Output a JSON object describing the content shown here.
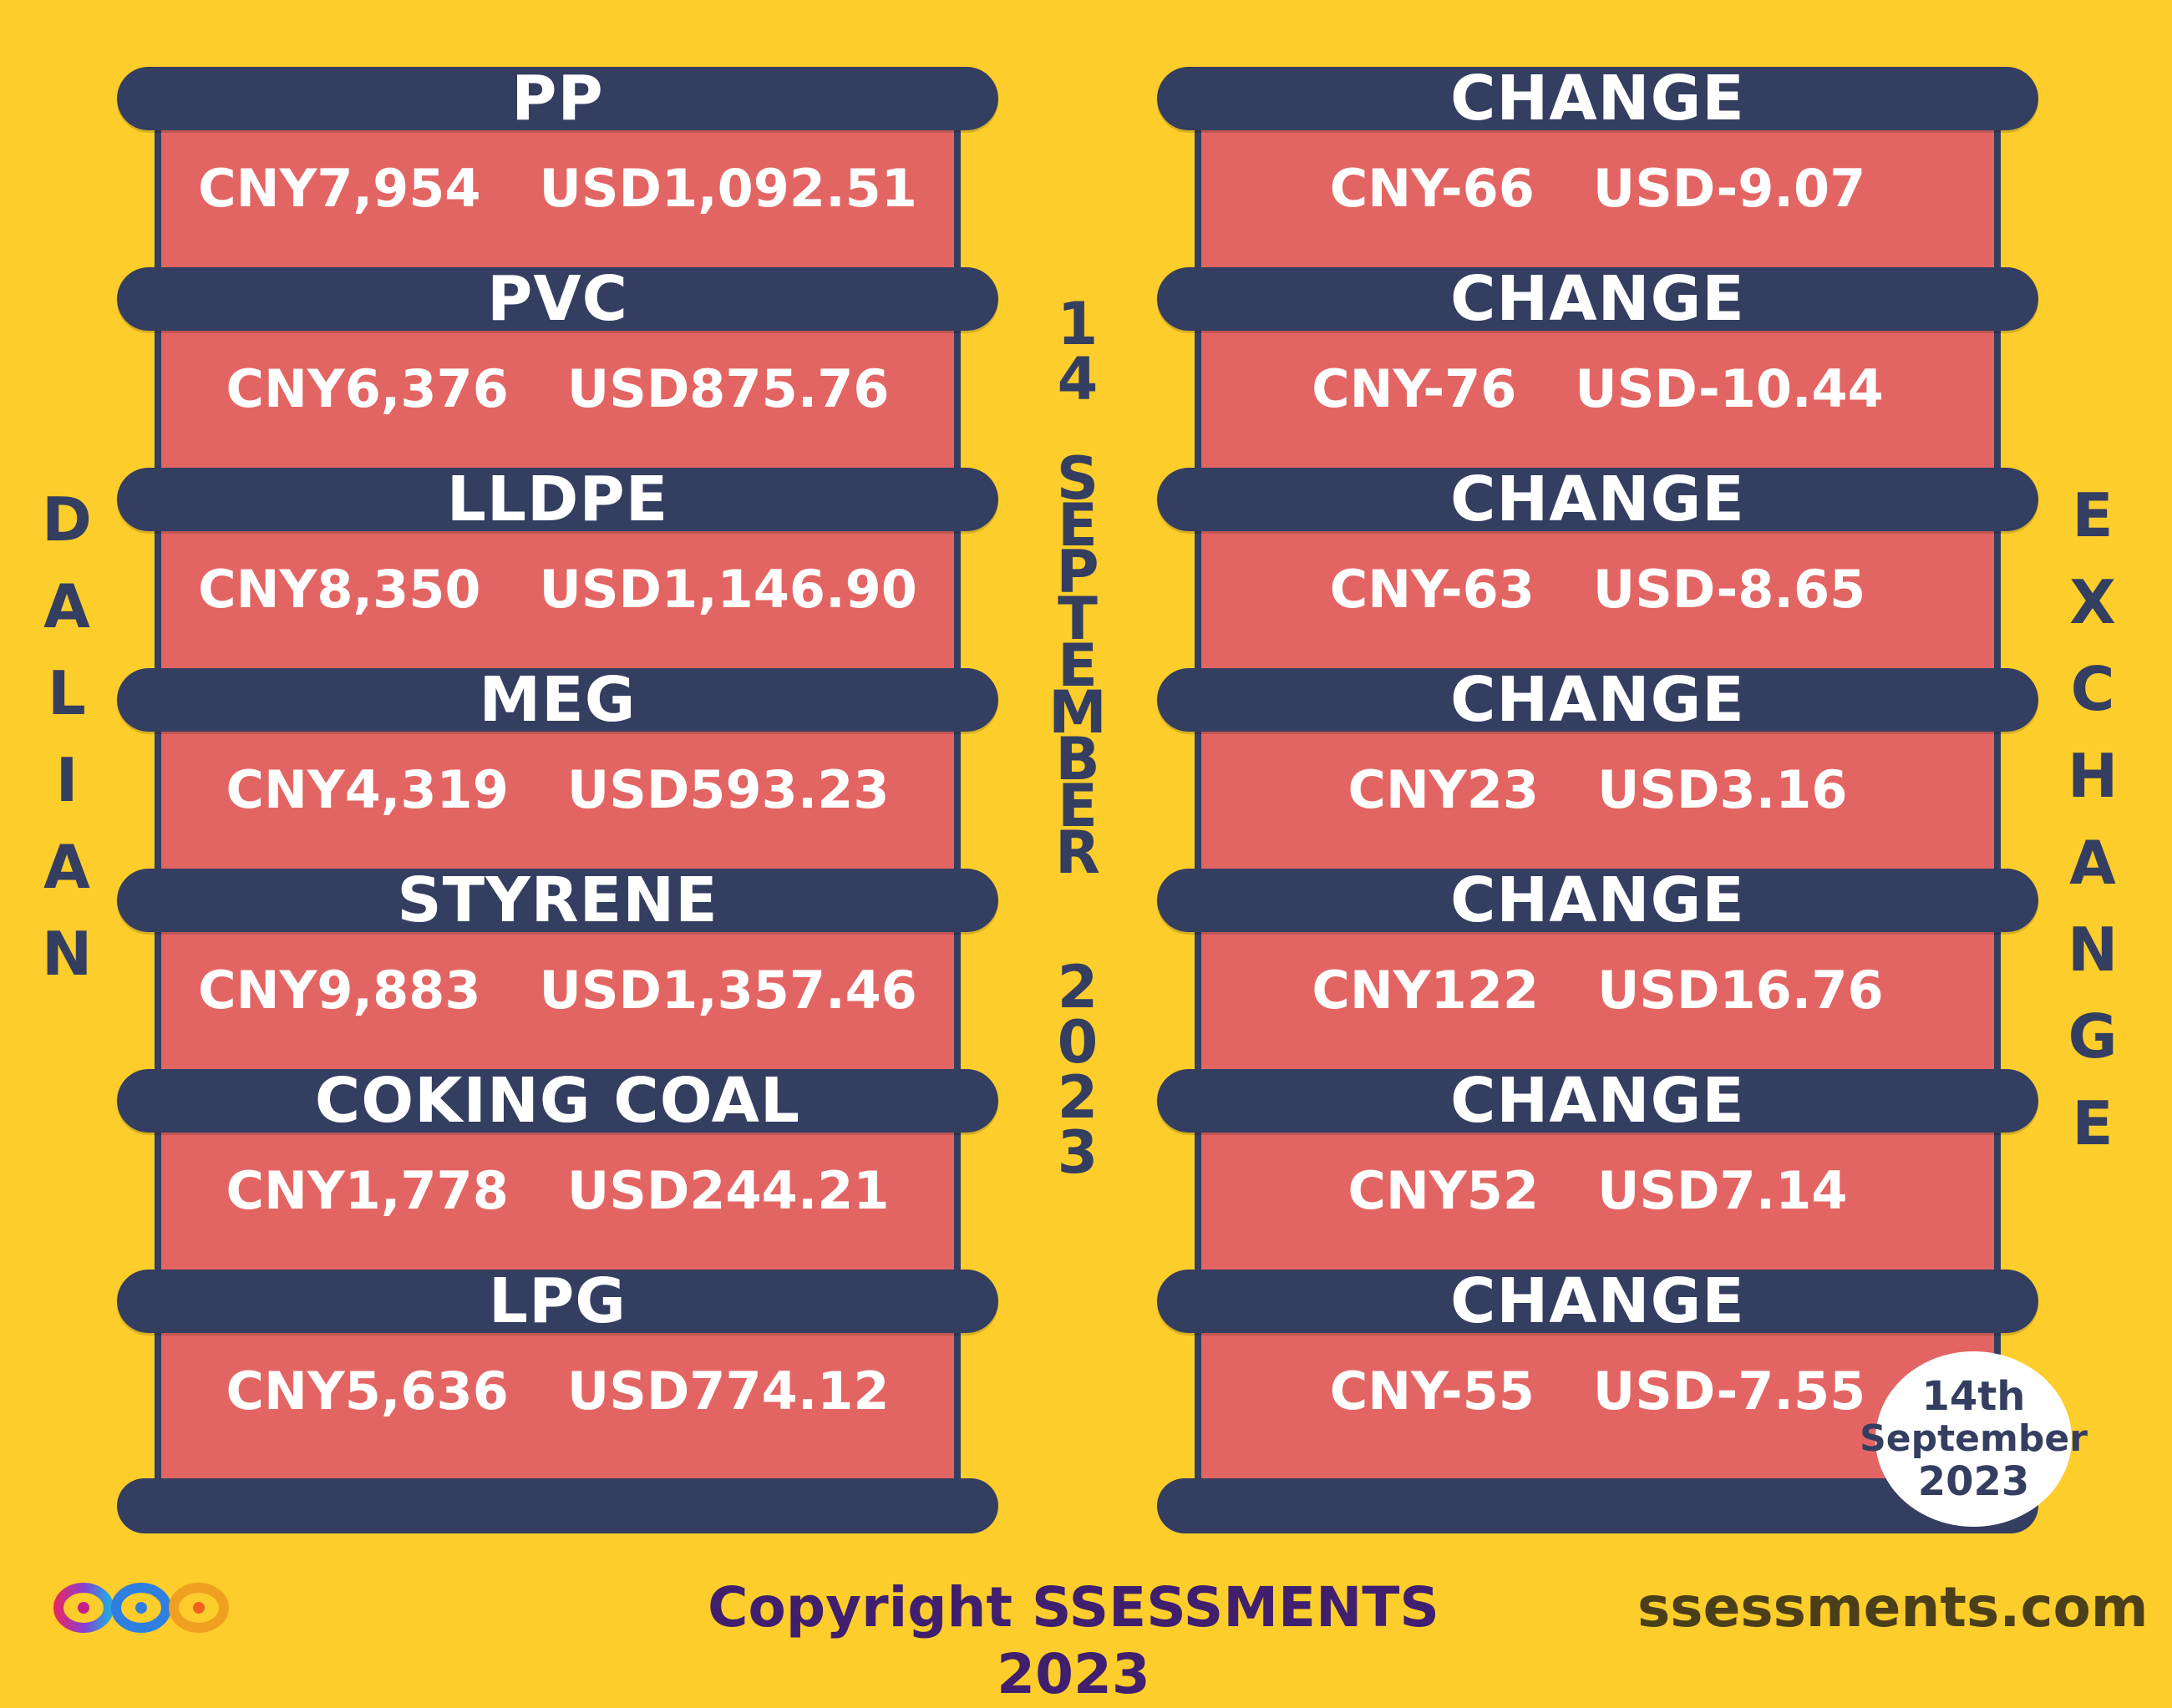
{
  "side_left": "DALIAN",
  "side_right": "EXCHANGE",
  "date_vertical": {
    "day": "14",
    "month": "SEPTEMBER",
    "year": "2023"
  },
  "products": [
    {
      "name": "PP",
      "cny": "CNY7,954",
      "usd": "USD1,092.51"
    },
    {
      "name": "PVC",
      "cny": "CNY6,376",
      "usd": "USD875.76"
    },
    {
      "name": "LLDPE",
      "cny": "CNY8,350",
      "usd": "USD1,146.90"
    },
    {
      "name": "MEG",
      "cny": "CNY4,319",
      "usd": "USD593.23"
    },
    {
      "name": "STYRENE",
      "cny": "CNY9,883",
      "usd": "USD1,357.46"
    },
    {
      "name": "COKING COAL",
      "cny": "CNY1,778",
      "usd": "USD244.21"
    },
    {
      "name": "LPG",
      "cny": "CNY5,636",
      "usd": "USD774.12"
    }
  ],
  "changes": [
    {
      "label": "CHANGE",
      "cny": "CNY-66",
      "usd": "USD-9.07"
    },
    {
      "label": "CHANGE",
      "cny": "CNY-76",
      "usd": "USD-10.44"
    },
    {
      "label": "CHANGE",
      "cny": "CNY-63",
      "usd": "USD-8.65"
    },
    {
      "label": "CHANGE",
      "cny": "CNY23",
      "usd": "USD3.16"
    },
    {
      "label": "CHANGE",
      "cny": "CNY122",
      "usd": "USD16.76"
    },
    {
      "label": "CHANGE",
      "cny": "CNY52",
      "usd": "USD7.14"
    },
    {
      "label": "CHANGE",
      "cny": "CNY-55",
      "usd": "USD-7.55"
    }
  ],
  "date_stamp": {
    "line1": "14th",
    "line2": "September",
    "line3": "2023"
  },
  "footer": {
    "copyright": "Copyright SSESSMENTS 2023",
    "website": "ssessments.com",
    "logo_icon": "infinity-logo-icon"
  },
  "colors": {
    "background": "#fdcd2b",
    "bar": "#343e60",
    "box": "#e36563"
  }
}
